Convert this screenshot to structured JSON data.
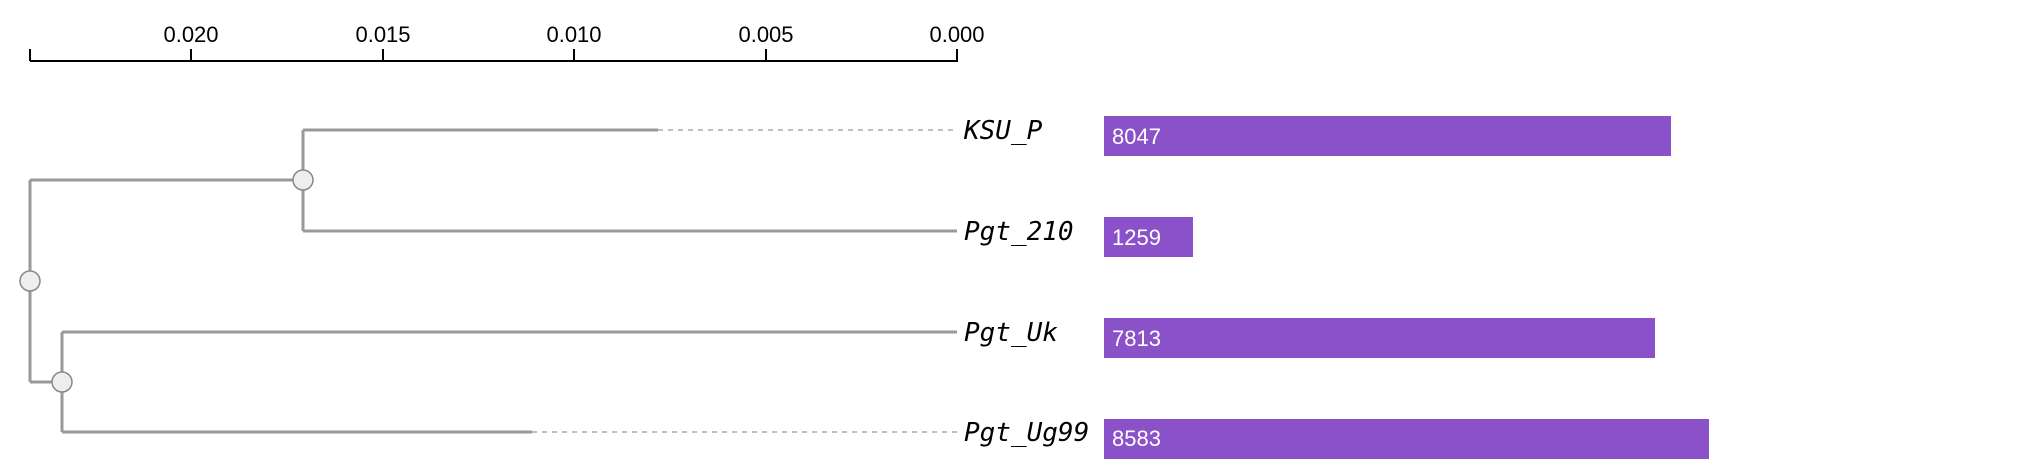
{
  "scale": {
    "ticks": [
      "0.020",
      "0.015",
      "0.010",
      "0.005",
      "0.000"
    ]
  },
  "leaves": [
    {
      "label": "KSU_P",
      "value": 8047,
      "value_label": "8047"
    },
    {
      "label": "Pgt_210",
      "value": 1259,
      "value_label": "1259"
    },
    {
      "label": "Pgt_Uk",
      "value": 7813,
      "value_label": "7813"
    },
    {
      "label": "Pgt_Ug99",
      "value": 8583,
      "value_label": "8583"
    }
  ],
  "colors": {
    "bar": "#8b51c8",
    "branch": "#999999",
    "node_fill": "#eeeeee",
    "node_stroke": "#888888",
    "axis": "#000000",
    "dashed": "#aaaaaa"
  }
}
